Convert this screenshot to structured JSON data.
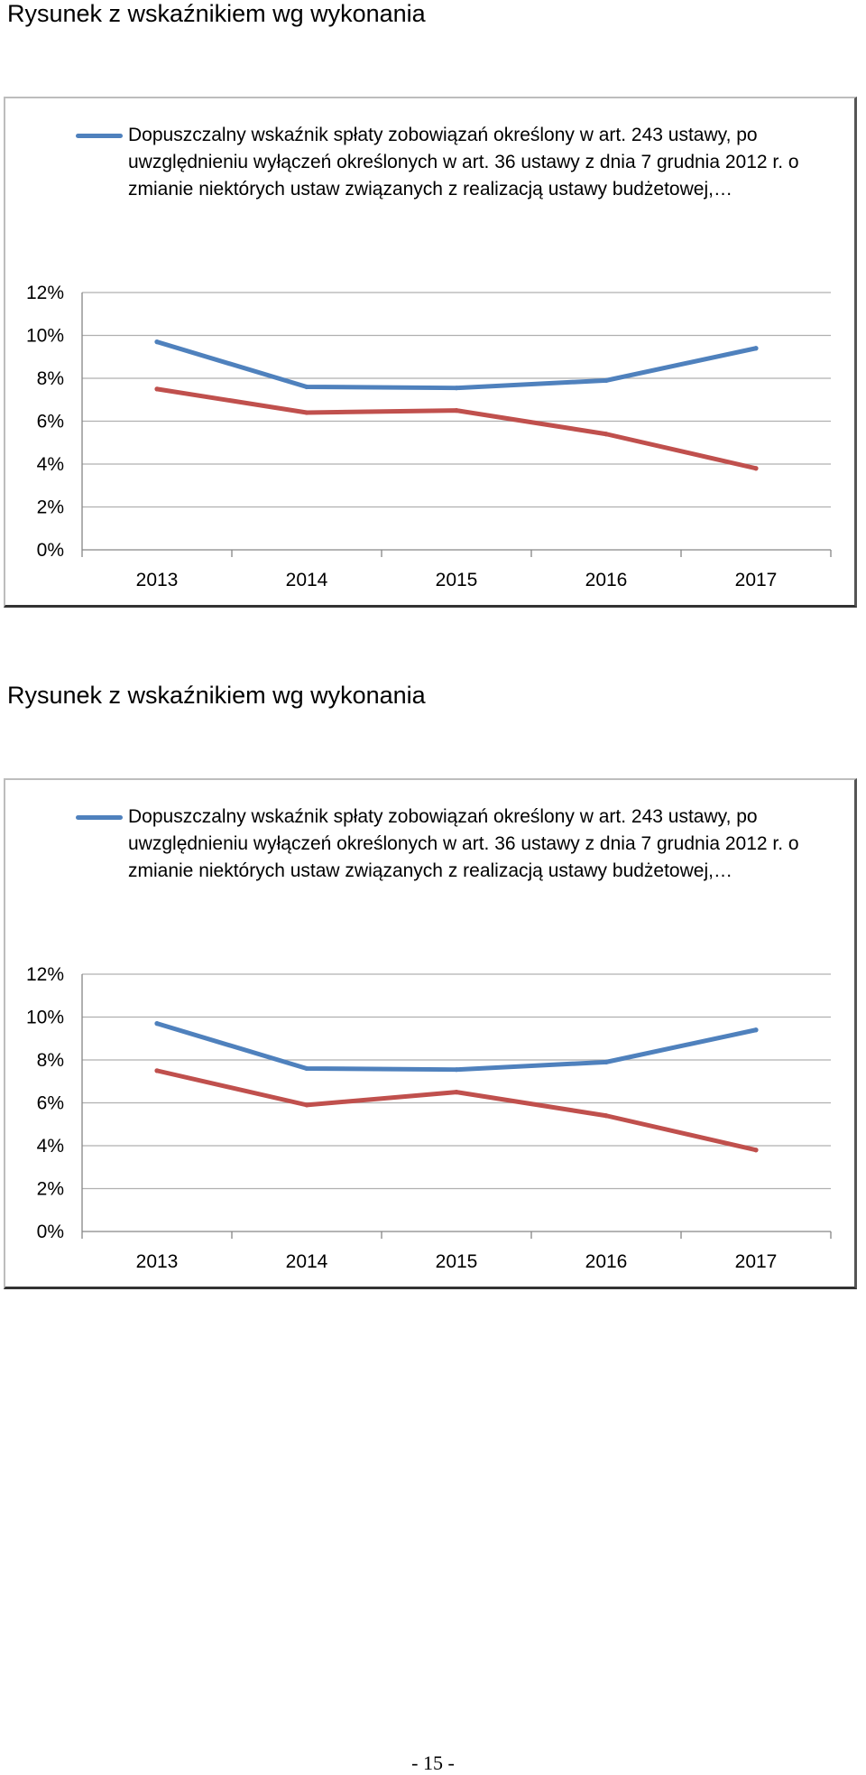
{
  "charts": [
    {
      "heading": "Rysunek z wskaźnikiem wg wykonania",
      "legend": "Dopuszczalny wskaźnik spłaty zobowiązań określony w art. 243 ustawy, po uwzględnieniu wyłączeń określonych w art. 36 ustawy z dnia 7 grudnia 2012 r. o zmianie niektórych ustaw związanych z realizacją ustawy budżetowej,…"
    },
    {
      "heading": "Rysunek z wskaźnikiem wg wykonania",
      "legend": "Dopuszczalny wskaźnik spłaty zobowiązań określony w art. 243 ustawy, po uwzględnieniu wyłączeń określonych w art. 36 ustawy z dnia 7 grudnia 2012 r. o zmianie niektórych ustaw związanych z realizacją ustawy budżetowej,…"
    }
  ],
  "page_number": "- 15 -",
  "chart_data": [
    {
      "type": "line",
      "categories": [
        "2013",
        "2014",
        "2015",
        "2016",
        "2017"
      ],
      "y_ticks": [
        "0%",
        "2%",
        "4%",
        "6%",
        "8%",
        "10%",
        "12%"
      ],
      "ylim": [
        0,
        12
      ],
      "grid": true,
      "legend_position": "top",
      "series": [
        {
          "name": "Dopuszczalny wskaźnik spłaty zobowiązań określony w art. 243 ustawy, po uwzględnieniu wyłączeń określonych w art. 36 ustawy z dnia 7 grudnia 2012 r. o zmianie niektórych ustaw związanych z realizacją ustawy budżetowej,…",
          "color": "#4f81bd",
          "values": [
            9.7,
            7.6,
            7.55,
            7.9,
            9.4
          ]
        },
        {
          "color": "#c0504d",
          "values": [
            7.5,
            6.4,
            6.5,
            5.4,
            3.8
          ]
        }
      ]
    },
    {
      "type": "line",
      "categories": [
        "2013",
        "2014",
        "2015",
        "2016",
        "2017"
      ],
      "y_ticks": [
        "0%",
        "2%",
        "4%",
        "6%",
        "8%",
        "10%",
        "12%"
      ],
      "ylim": [
        0,
        12
      ],
      "grid": true,
      "legend_position": "top",
      "series": [
        {
          "name": "Dopuszczalny wskaźnik spłaty zobowiązań określony w art. 243 ustawy, po uwzględnieniu wyłączeń określonych w art. 36 ustawy z dnia 7 grudnia 2012 r. o zmianie niektórych ustaw związanych z realizacją ustawy budżetowej,…",
          "color": "#4f81bd",
          "values": [
            9.7,
            7.6,
            7.55,
            7.9,
            9.4
          ]
        },
        {
          "color": "#c0504d",
          "values": [
            7.5,
            5.9,
            6.5,
            5.4,
            3.8
          ]
        }
      ]
    }
  ]
}
